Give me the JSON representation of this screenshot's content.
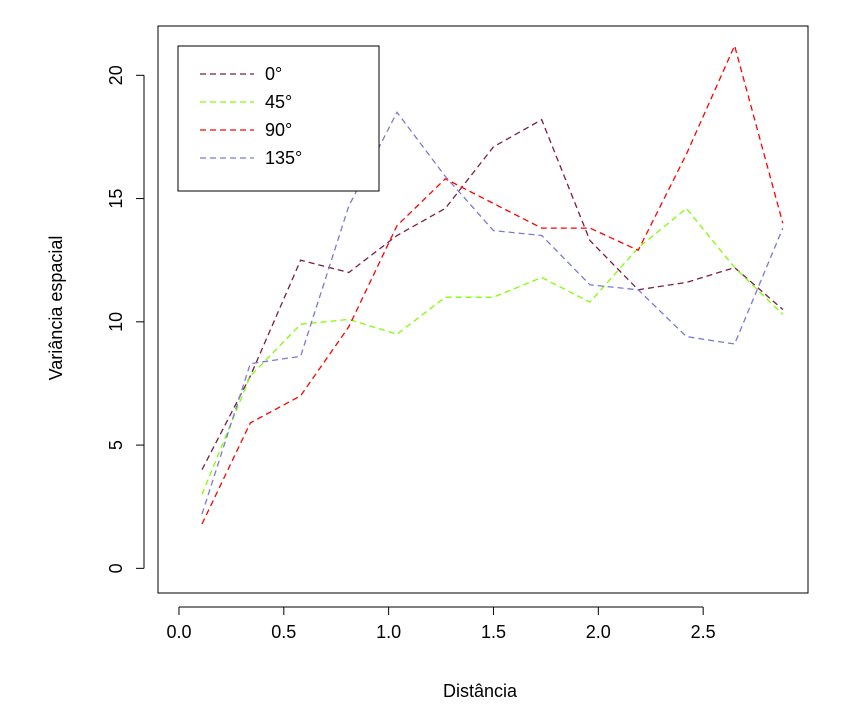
{
  "chart_data": {
    "type": "line",
    "title": "",
    "xlabel": "Distância",
    "ylabel": "Variância espacial",
    "xlim": [
      -0.1,
      3.0
    ],
    "ylim": [
      -1,
      22
    ],
    "xticks": [
      0.0,
      0.5,
      1.0,
      1.5,
      2.0,
      2.5
    ],
    "xtick_labels": [
      "0.0",
      "0.5",
      "1.0",
      "1.5",
      "2.0",
      "2.5"
    ],
    "yticks": [
      0,
      5,
      10,
      15,
      20
    ],
    "ytick_labels": [
      "0",
      "5",
      "10",
      "15",
      "20"
    ],
    "legend_position": "top-left",
    "line_style": "dashed",
    "x": [
      0.11,
      0.34,
      0.58,
      0.81,
      1.04,
      1.27,
      1.5,
      1.73,
      1.96,
      2.19,
      2.42,
      2.65,
      2.88
    ],
    "series": [
      {
        "name": "0°",
        "color": "#7a1c48",
        "values": [
          4.0,
          7.8,
          12.5,
          12.0,
          13.5,
          14.6,
          17.1,
          18.2,
          13.3,
          11.3,
          11.6,
          12.2,
          10.5
        ]
      },
      {
        "name": "45°",
        "color": "#80ff00",
        "values": [
          3.0,
          7.8,
          9.9,
          10.1,
          9.5,
          11.0,
          11.0,
          11.8,
          10.8,
          13.0,
          14.6,
          12.2,
          10.3
        ]
      },
      {
        "name": "90°",
        "color": "#ff0000",
        "values": [
          1.8,
          5.9,
          7.0,
          9.8,
          13.9,
          15.8,
          14.8,
          13.8,
          13.8,
          12.9,
          16.8,
          21.2,
          14.0
        ]
      },
      {
        "name": "135°",
        "color": "#7a7ad4",
        "values": [
          2.2,
          8.3,
          8.6,
          14.7,
          18.5,
          15.9,
          13.7,
          13.5,
          11.5,
          11.3,
          9.4,
          9.1,
          13.8
        ]
      }
    ]
  }
}
